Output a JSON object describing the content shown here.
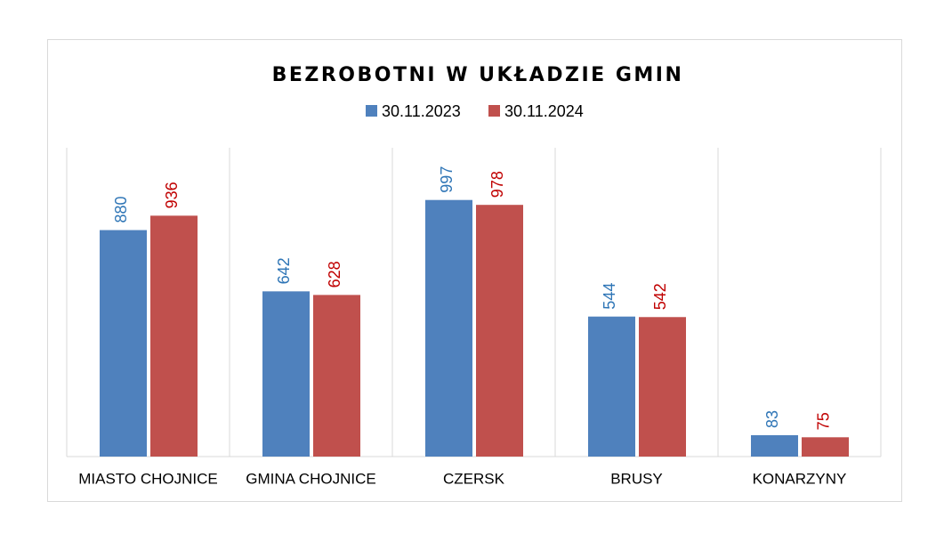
{
  "chart_data": {
    "type": "bar",
    "title": "BEZROBOTNI W UKŁADZIE GMIN",
    "categories": [
      "MIASTO CHOJNICE",
      "GMINA CHOJNICE",
      "CZERSK",
      "BRUSY",
      "KONARZYNY"
    ],
    "series": [
      {
        "name": "30.11.2023",
        "color": "#4f81bd",
        "values": [
          880,
          642,
          997,
          544,
          83
        ]
      },
      {
        "name": "30.11.2024",
        "color": "#c0504d",
        "values": [
          936,
          628,
          978,
          542,
          75
        ]
      }
    ],
    "ylim": [
      0,
      1200
    ],
    "grid": true
  }
}
